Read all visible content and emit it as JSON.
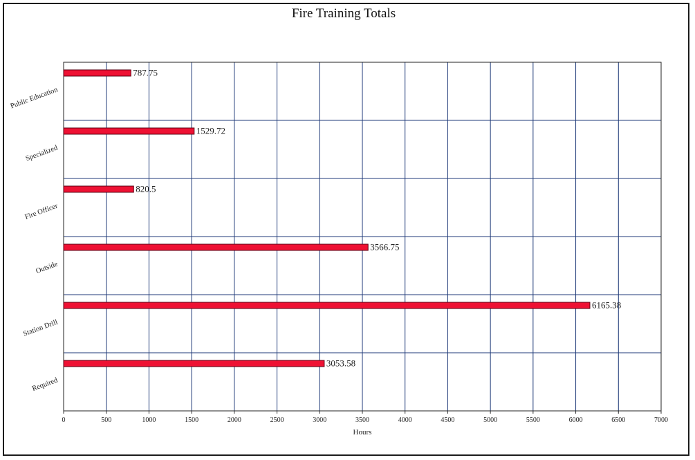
{
  "chart_data": {
    "type": "bar",
    "orientation": "horizontal",
    "title": "Fire Training Totals",
    "xlabel": "Hours",
    "ylabel": "",
    "categories": [
      "Public Education",
      "Specialized",
      "Fire Officer",
      "Outside",
      "Station Drill",
      "Required"
    ],
    "values": [
      787.75,
      1529.72,
      820.5,
      3566.75,
      6165.38,
      3053.58
    ],
    "data_labels": [
      "787.75",
      "1529.72",
      "820.5",
      "3566.75",
      "6165.38",
      "3053.58"
    ],
    "xlim": [
      0,
      7000
    ],
    "xticks": [
      0,
      500,
      1000,
      1500,
      2000,
      2500,
      3000,
      3500,
      4000,
      4500,
      5000,
      5500,
      6000,
      6500,
      7000
    ],
    "xtick_labels": [
      "0",
      "500",
      "1000",
      "1500",
      "2000",
      "2500",
      "3000",
      "3500",
      "4000",
      "4500",
      "5000",
      "5500",
      "6000",
      "6500",
      "7000"
    ],
    "grid": true,
    "legend": false,
    "colors": {
      "bar_fill": "#ee1133",
      "bar_stroke": "#5a0010",
      "grid": "#1f3a78",
      "border": "#1a1a1a"
    }
  }
}
